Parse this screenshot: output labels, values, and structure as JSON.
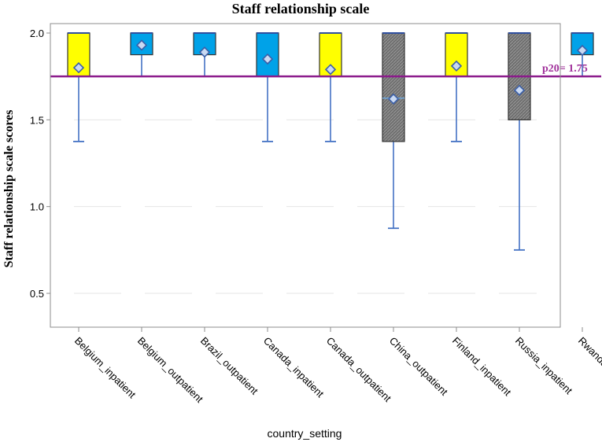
{
  "chart_data": {
    "type": "box",
    "title": "Staff relationship scale",
    "xlabel": "country_setting",
    "ylabel": "Staff relationship scale scores",
    "ylim": [
      0.3,
      2.0
    ],
    "yticks": [
      "2.0",
      "1.5",
      "1.0",
      "0.5"
    ],
    "ytick_values": [
      2.0,
      1.5,
      1.0,
      0.5
    ],
    "grid": true,
    "reference_line": {
      "value": 1.75,
      "label": "p20= 1.75",
      "color": "#8b1a8b"
    },
    "categories": [
      "Belgium_inpatient",
      "Belgium_outpatient",
      "Brazil_outpatient",
      "Canada_inpatient",
      "Canada_outpatient",
      "China_outpatient",
      "Finland_inpatient",
      "Russia_inpatient",
      "Rwanda_inpatient"
    ],
    "boxes": [
      {
        "q1": 1.75,
        "median": 2.0,
        "q3": 2.0,
        "whisker_low": 1.375,
        "whisker_high": 2.0,
        "mean": 1.8,
        "color": "#ffff00"
      },
      {
        "q1": 1.875,
        "median": 2.0,
        "q3": 2.0,
        "whisker_low": 1.75,
        "whisker_high": 2.0,
        "mean": 1.93,
        "color": "#00a2e8"
      },
      {
        "q1": 1.875,
        "median": 2.0,
        "q3": 2.0,
        "whisker_low": 1.75,
        "whisker_high": 2.0,
        "mean": 1.89,
        "color": "#00a2e8"
      },
      {
        "q1": 1.75,
        "median": 2.0,
        "q3": 2.0,
        "whisker_low": 1.375,
        "whisker_high": 2.0,
        "mean": 1.85,
        "color": "#00a2e8"
      },
      {
        "q1": 1.75,
        "median": 2.0,
        "q3": 2.0,
        "whisker_low": 1.375,
        "whisker_high": 2.0,
        "mean": 1.79,
        "color": "#ffff00"
      },
      {
        "q1": 1.375,
        "median": 1.625,
        "q3": 2.0,
        "whisker_low": 0.875,
        "whisker_high": 2.0,
        "mean": 1.62,
        "color": "#707070"
      },
      {
        "q1": 1.75,
        "median": 2.0,
        "q3": 2.0,
        "whisker_low": 1.375,
        "whisker_high": 2.0,
        "mean": 1.81,
        "color": "#ffff00"
      },
      {
        "q1": 1.5,
        "median": 1.75,
        "q3": 2.0,
        "whisker_low": 0.75,
        "whisker_high": 2.0,
        "mean": 1.67,
        "color": "#707070"
      },
      {
        "q1": 1.875,
        "median": 2.0,
        "q3": 2.0,
        "whisker_low": 1.75,
        "whisker_high": 2.0,
        "mean": 1.9,
        "color": "#00a2e8"
      }
    ]
  }
}
